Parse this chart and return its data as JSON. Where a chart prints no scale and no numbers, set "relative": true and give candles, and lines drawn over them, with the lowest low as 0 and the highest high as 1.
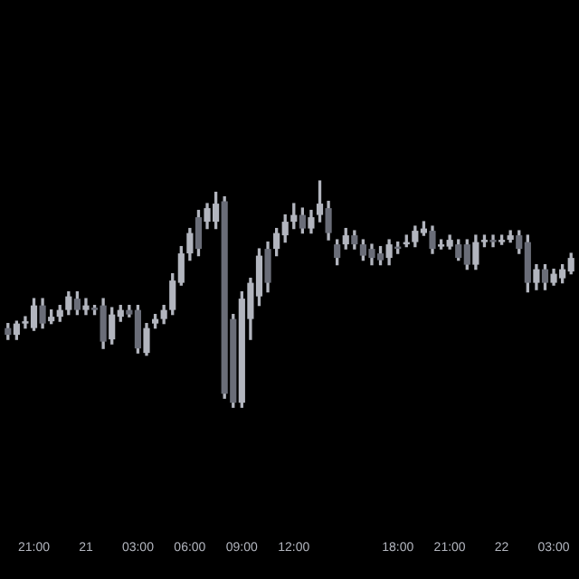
{
  "chart_data": {
    "type": "candlestick",
    "relative": true,
    "grid": false,
    "legend": false,
    "categories": [
      null,
      null,
      null,
      "21:00",
      null,
      null,
      null,
      null,
      null,
      "21",
      null,
      null,
      null,
      null,
      null,
      "03:00",
      null,
      null,
      null,
      null,
      null,
      "06:00",
      null,
      null,
      null,
      null,
      null,
      "09:00",
      null,
      null,
      null,
      null,
      null,
      "12:00",
      null,
      null,
      null,
      null,
      null,
      null,
      null,
      null,
      null,
      null,
      null,
      "18:00",
      null,
      null,
      null,
      null,
      null,
      "21:00",
      null,
      null,
      null,
      null,
      null,
      "22",
      null,
      null,
      null,
      null,
      null,
      "03:00",
      null,
      null
    ],
    "ohlc": [
      [
        0.35,
        0.37,
        0.3,
        0.32
      ],
      [
        0.32,
        0.38,
        0.3,
        0.37
      ],
      [
        0.37,
        0.4,
        0.35,
        0.38
      ],
      [
        0.35,
        0.48,
        0.34,
        0.45
      ],
      [
        0.45,
        0.48,
        0.35,
        0.37
      ],
      [
        0.38,
        0.43,
        0.37,
        0.4
      ],
      [
        0.4,
        0.45,
        0.38,
        0.43
      ],
      [
        0.43,
        0.51,
        0.41,
        0.49
      ],
      [
        0.48,
        0.51,
        0.41,
        0.43
      ],
      [
        0.43,
        0.48,
        0.41,
        0.45
      ],
      [
        0.44,
        0.45,
        0.41,
        0.43
      ],
      [
        0.45,
        0.48,
        0.26,
        0.29
      ],
      [
        0.3,
        0.44,
        0.28,
        0.41
      ],
      [
        0.4,
        0.45,
        0.38,
        0.43
      ],
      [
        0.43,
        0.45,
        0.4,
        0.41
      ],
      [
        0.43,
        0.45,
        0.24,
        0.26
      ],
      [
        0.24,
        0.37,
        0.23,
        0.35
      ],
      [
        0.37,
        0.41,
        0.35,
        0.39
      ],
      [
        0.39,
        0.45,
        0.37,
        0.43
      ],
      [
        0.43,
        0.59,
        0.41,
        0.56
      ],
      [
        0.55,
        0.71,
        0.54,
        0.68
      ],
      [
        0.68,
        0.79,
        0.65,
        0.77
      ],
      [
        0.84,
        0.87,
        0.67,
        0.7
      ],
      [
        0.82,
        0.9,
        0.79,
        0.88
      ],
      [
        0.82,
        0.95,
        0.79,
        0.9
      ],
      [
        0.91,
        0.93,
        0.04,
        0.06
      ],
      [
        0.39,
        0.41,
        0,
        0.02
      ],
      [
        0.02,
        0.51,
        0,
        0.48
      ],
      [
        0.39,
        0.57,
        0.3,
        0.55
      ],
      [
        0.49,
        0.7,
        0.45,
        0.67
      ],
      [
        0.7,
        0.73,
        0.51,
        0.55
      ],
      [
        0.7,
        0.79,
        0.67,
        0.77
      ],
      [
        0.76,
        0.85,
        0.73,
        0.82
      ],
      [
        0.82,
        0.9,
        0.79,
        0.85
      ],
      [
        0.85,
        0.88,
        0.77,
        0.79
      ],
      [
        0.79,
        0.87,
        0.77,
        0.84
      ],
      [
        0.85,
        1,
        0.82,
        0.9
      ],
      [
        0.88,
        0.91,
        0.74,
        0.77
      ],
      [
        0.72,
        0.74,
        0.63,
        0.66
      ],
      [
        0.72,
        0.79,
        0.7,
        0.76
      ],
      [
        0.76,
        0.78,
        0.7,
        0.72
      ],
      [
        0.72,
        0.74,
        0.65,
        0.67
      ],
      [
        0.7,
        0.72,
        0.63,
        0.66
      ],
      [
        0.68,
        0.71,
        0.63,
        0.65
      ],
      [
        0.66,
        0.74,
        0.63,
        0.72
      ],
      [
        0.71,
        0.73,
        0.68,
        0.7
      ],
      [
        0.72,
        0.76,
        0.71,
        0.73
      ],
      [
        0.73,
        0.8,
        0.71,
        0.78
      ],
      [
        0.77,
        0.82,
        0.76,
        0.79
      ],
      [
        0.78,
        0.8,
        0.68,
        0.7
      ],
      [
        0.71,
        0.74,
        0.7,
        0.72
      ],
      [
        0.71,
        0.76,
        0.7,
        0.74
      ],
      [
        0.72,
        0.74,
        0.65,
        0.66
      ],
      [
        0.72,
        0.74,
        0.61,
        0.63
      ],
      [
        0.63,
        0.76,
        0.61,
        0.73
      ],
      [
        0.73,
        0.76,
        0.71,
        0.74
      ],
      [
        0.74,
        0.76,
        0.71,
        0.73
      ],
      [
        0.73,
        0.76,
        0.72,
        0.74
      ],
      [
        0.74,
        0.78,
        0.73,
        0.76
      ],
      [
        0.76,
        0.78,
        0.68,
        0.7
      ],
      [
        0.73,
        0.76,
        0.51,
        0.55
      ],
      [
        0.55,
        0.63,
        0.52,
        0.61
      ],
      [
        0.61,
        0.63,
        0.52,
        0.55
      ],
      [
        0.55,
        0.61,
        0.54,
        0.59
      ],
      [
        0.57,
        0.63,
        0.55,
        0.61
      ],
      [
        0.6,
        0.68,
        0.59,
        0.66
      ]
    ]
  }
}
